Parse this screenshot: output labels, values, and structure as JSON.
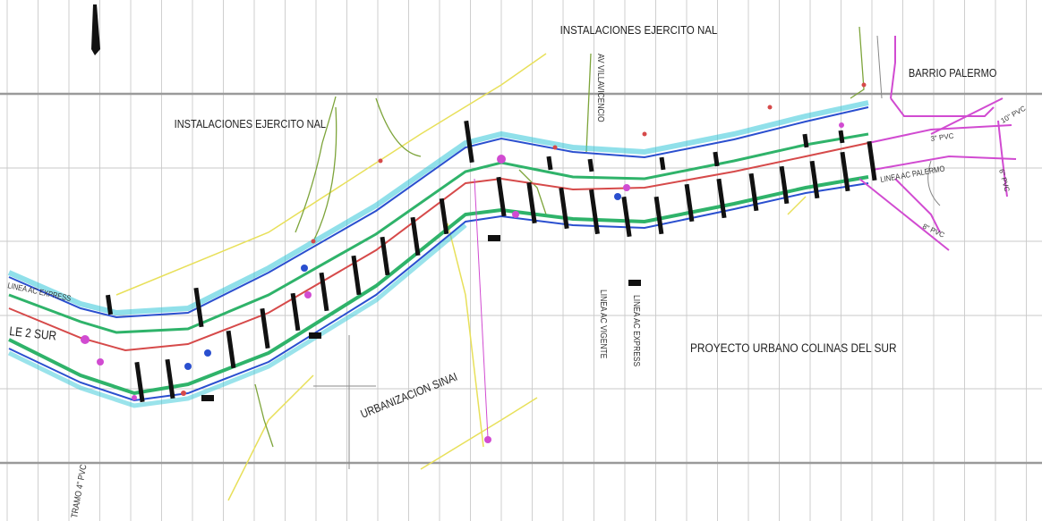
{
  "plan": {
    "labels": {
      "inst_ejercito_top": "INSTALACIONES EJERCITO NAL",
      "inst_ejercito_left": "INSTALACIONES EJERCITO NAL",
      "barrio_palermo": "BARRIO PALERMO",
      "proyecto_urbano": "PROYECTO URBANO COLINAS DEL SUR",
      "urbanizacion": "URBANIZACION SINAI",
      "linea_ac_palermo": "LINEA AC PALERMO",
      "linea_ac_express_left": "LINEA AC EXPRESS",
      "calle_2_sur": "LE 2 SUR",
      "linea_ac_vigente": "LINEA AC VIGENTE",
      "linea_ac_express_vertical": "LINEA AC EXPRESS",
      "av_vertical": "AV VILLAVICENCIO",
      "tramo_pvc": "TRAMO 4\" PVC",
      "pvc_right_1": "3\" PVC",
      "pvc_right_2": "8\" PVC",
      "pvc_right_3": "10\" PVC",
      "pvc_right_vertical": "6\" PVC"
    },
    "colors": {
      "grid_light": "#c8c8c8",
      "grid_dark": "#9a9a9a",
      "road_green": "#2fb36a",
      "road_cyan": "#35c7d8",
      "axis_red": "#d64a4a",
      "blue_line": "#2a4fcf",
      "magenta": "#d14bd1",
      "yellow": "#e8e05a",
      "olive": "#8aa63a",
      "black": "#111111"
    }
  }
}
